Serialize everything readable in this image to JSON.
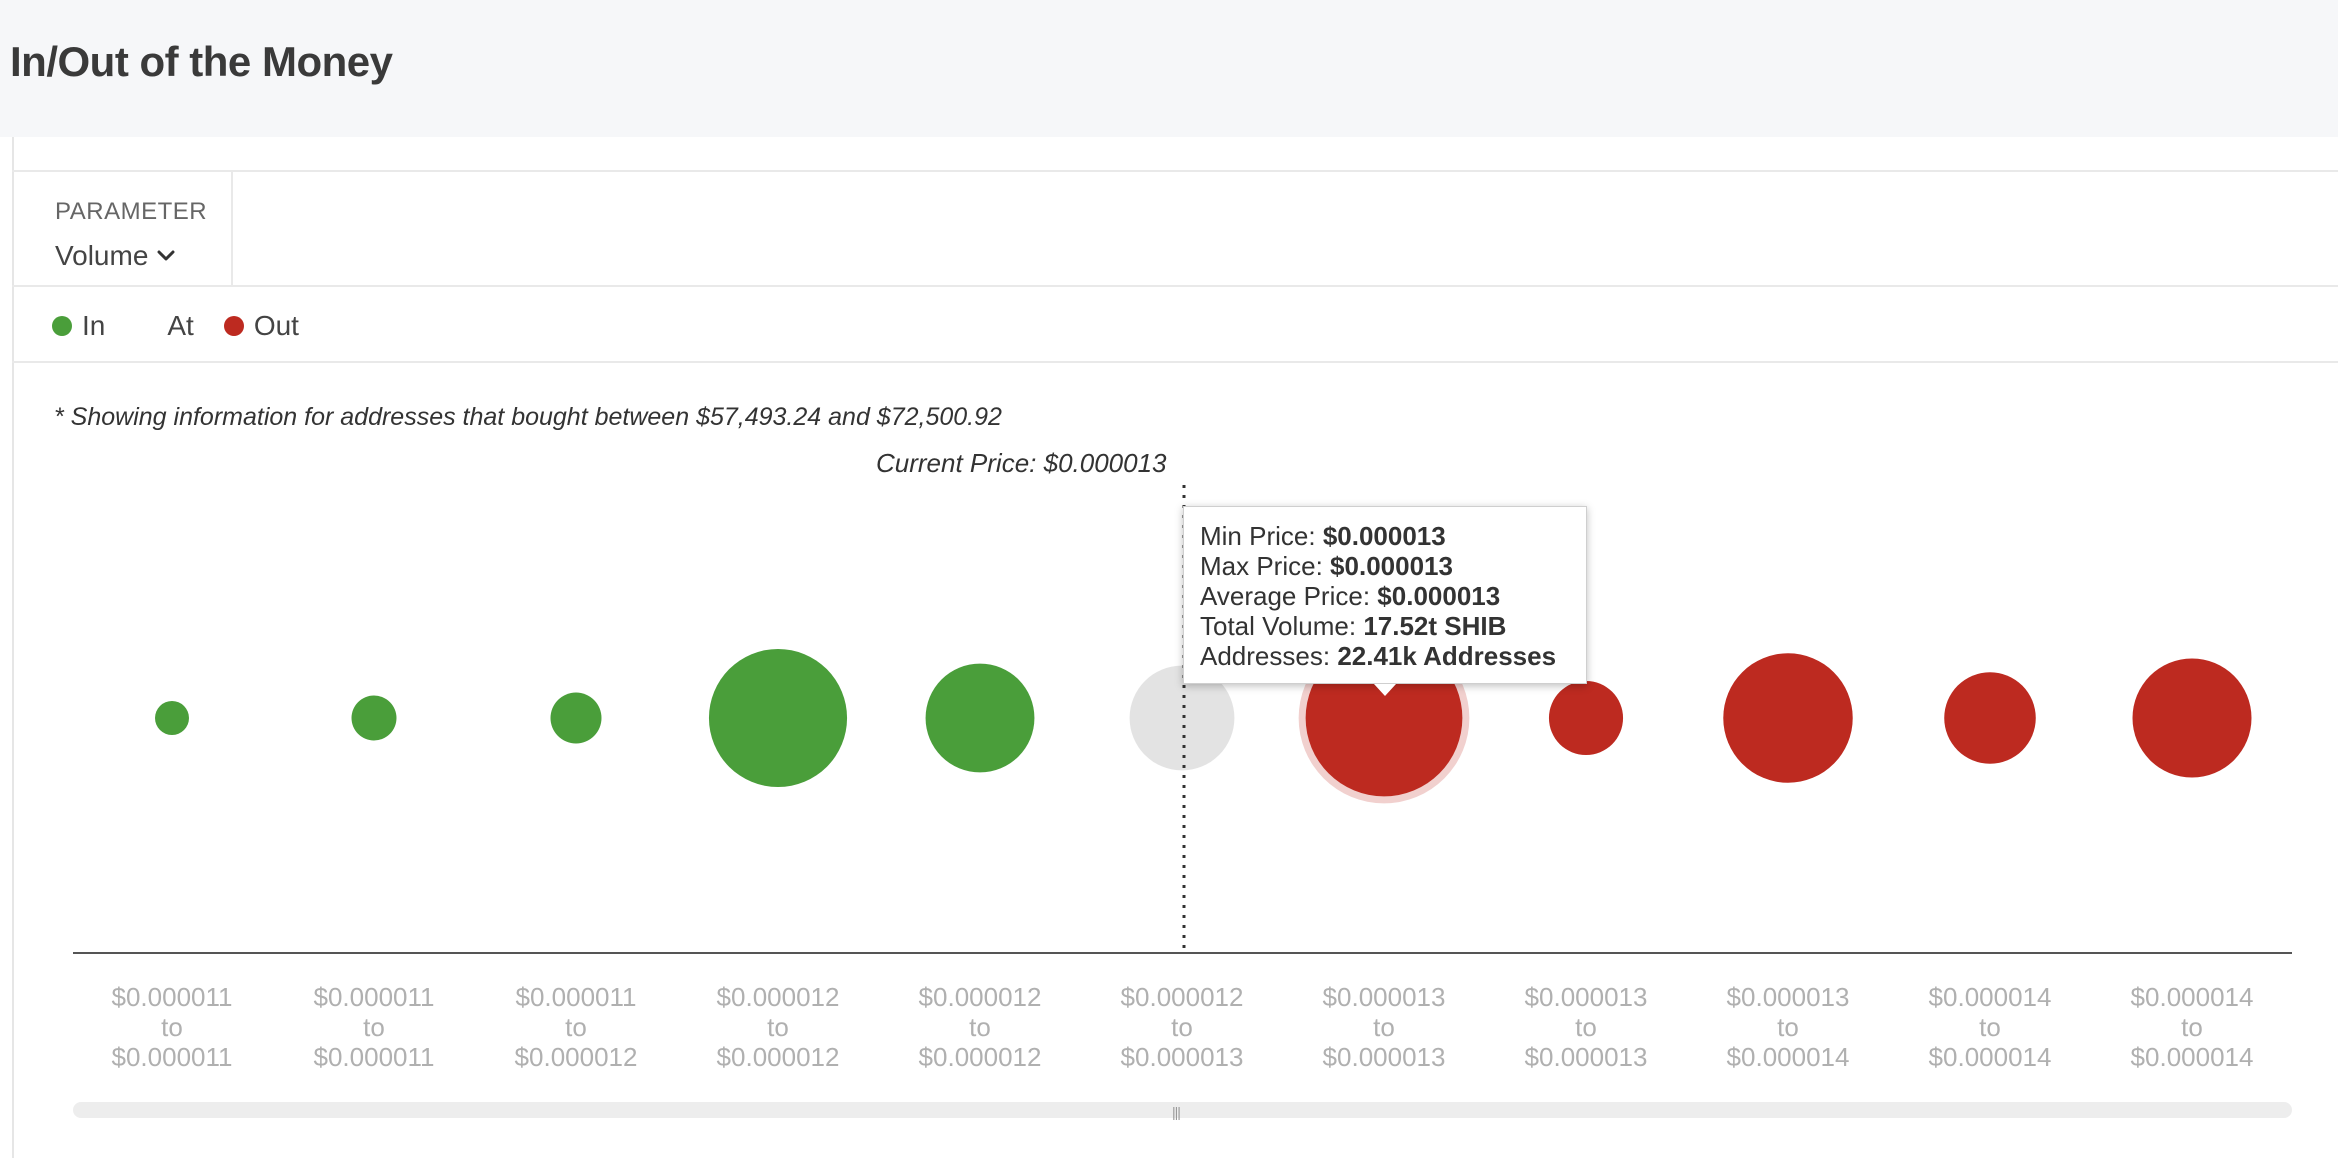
{
  "page": {
    "title": "In/Out of the Money"
  },
  "parameter": {
    "label": "PARAMETER",
    "value": "Volume"
  },
  "legend": {
    "items": [
      {
        "label": "In",
        "color": "#4a9e3a"
      },
      {
        "label": "At",
        "color": ""
      },
      {
        "label": "Out",
        "color": "#bd2a20"
      }
    ]
  },
  "note": "* Showing information for addresses that bought between $57,493.24 and $72,500.92",
  "current_price_label": "Current Price: $0.000013",
  "tooltip": {
    "rows": [
      {
        "label": "Min Price:",
        "value": "$0.000013"
      },
      {
        "label": "Max Price:",
        "value": "$0.000013"
      },
      {
        "label": "Average Price:",
        "value": "$0.000013"
      },
      {
        "label": "Total Volume:",
        "value": "17.52t SHIB"
      },
      {
        "label": "Addresses:",
        "value": "22.41k Addresses"
      }
    ]
  },
  "chart_data": {
    "type": "bubble",
    "categories": [
      [
        "$0.000011",
        "to",
        "$0.000011"
      ],
      [
        "$0.000011",
        "to",
        "$0.000011"
      ],
      [
        "$0.000011",
        "to",
        "$0.000012"
      ],
      [
        "$0.000012",
        "to",
        "$0.000012"
      ],
      [
        "$0.000012",
        "to",
        "$0.000012"
      ],
      [
        "$0.000012",
        "to",
        "$0.000013"
      ],
      [
        "$0.000013",
        "to",
        "$0.000013"
      ],
      [
        "$0.000013",
        "to",
        "$0.000013"
      ],
      [
        "$0.000013",
        "to",
        "$0.000014"
      ],
      [
        "$0.000014",
        "to",
        "$0.000014"
      ],
      [
        "$0.000014",
        "to",
        "$0.000014"
      ]
    ],
    "status": [
      "In",
      "In",
      "In",
      "In",
      "In",
      "At",
      "Out",
      "Out",
      "Out",
      "Out",
      "Out"
    ],
    "relative_volume": [
      0.04,
      0.07,
      0.09,
      0.66,
      0.41,
      0.38,
      0.85,
      0.19,
      0.58,
      0.29,
      0.49
    ],
    "highlighted_index": 6,
    "current_price_index": 5,
    "colors": {
      "In": "#4a9e3a",
      "At": "#e3e3e3",
      "Out": "#bd2a20"
    }
  }
}
